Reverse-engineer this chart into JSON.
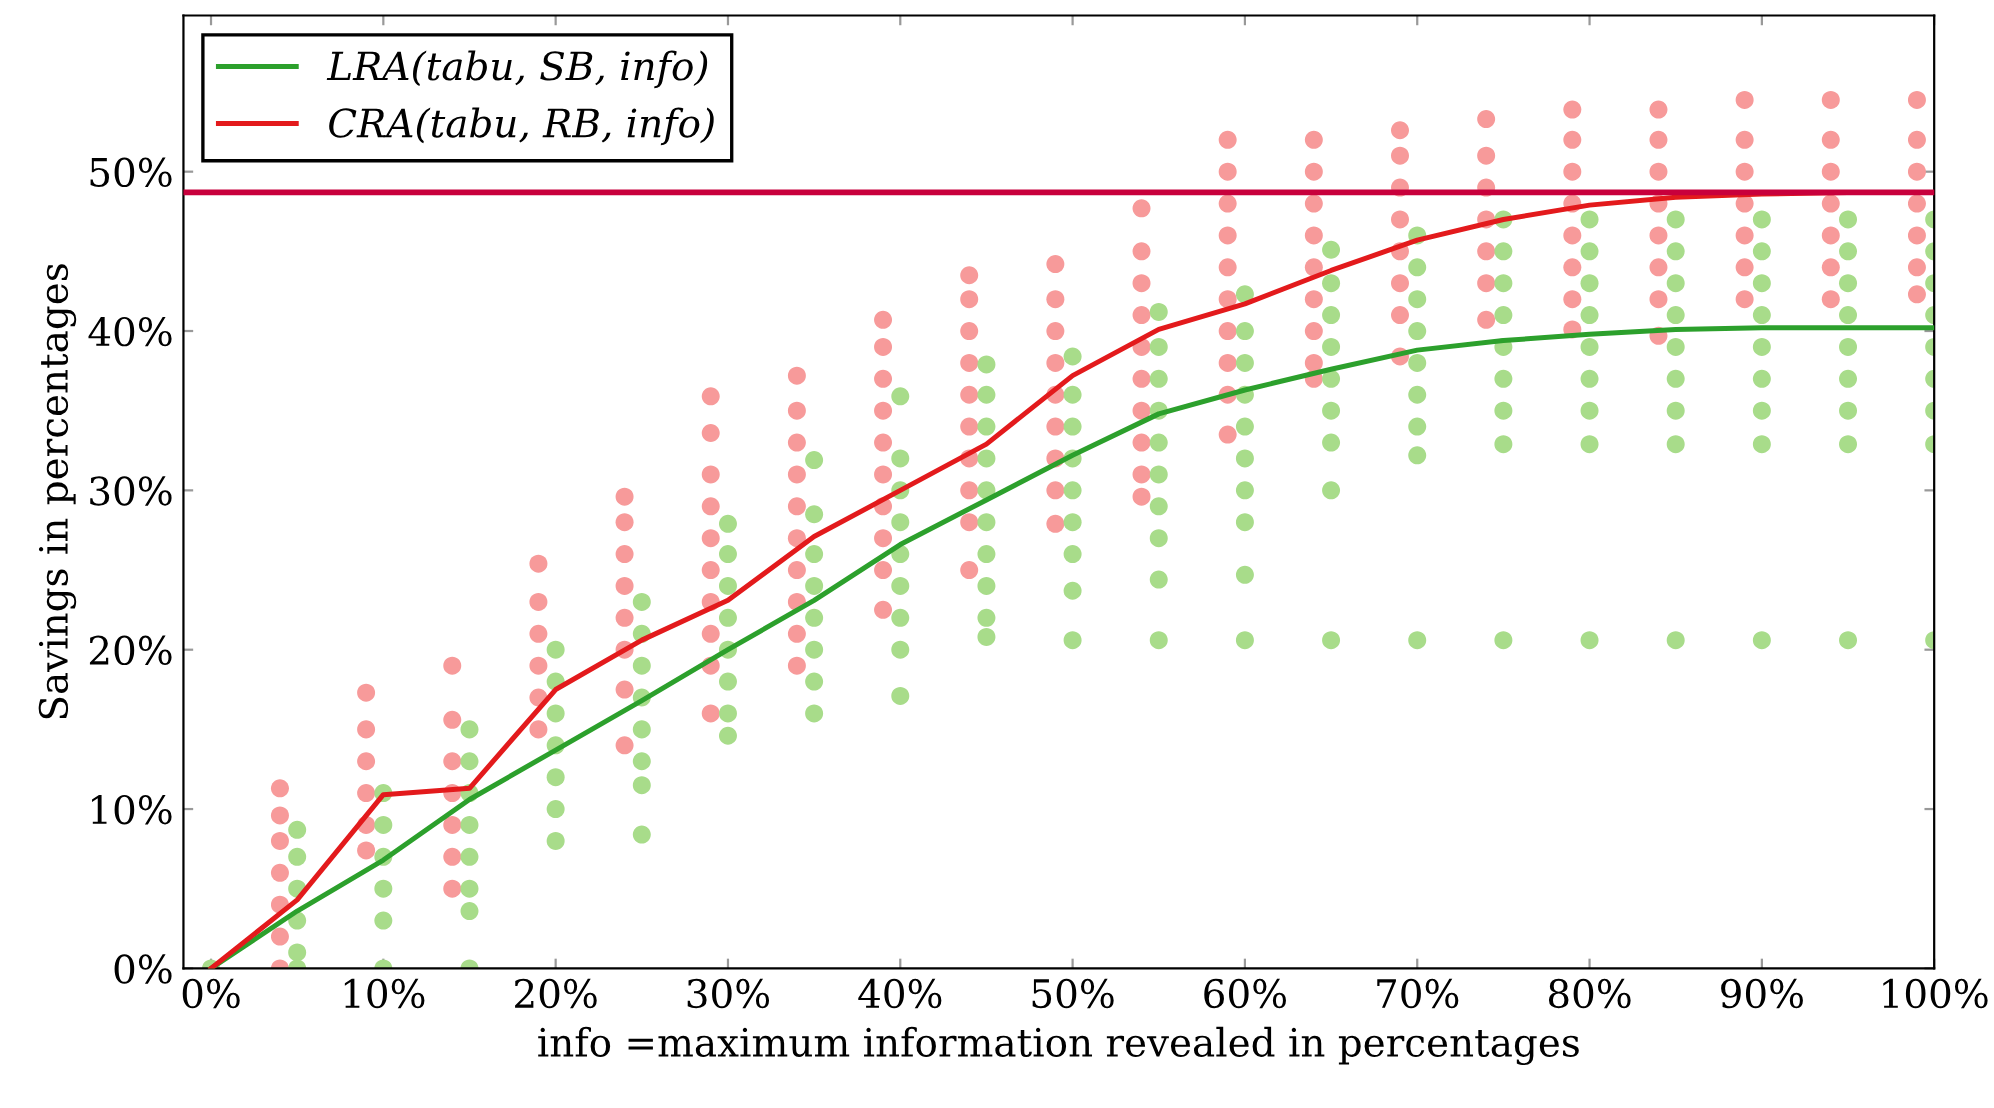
{
  "chart_data": {
    "type": "scatter",
    "xlabel": "info =maximum information revealed in percentages",
    "ylabel": "Savings in percentages",
    "xlim": [
      -1.6,
      100
    ],
    "ylim": [
      0,
      59.8
    ],
    "xticks": [
      {
        "value": 0,
        "label": "0%"
      },
      {
        "value": 10,
        "label": "10%"
      },
      {
        "value": 20,
        "label": "20%"
      },
      {
        "value": 30,
        "label": "30%"
      },
      {
        "value": 40,
        "label": "40%"
      },
      {
        "value": 50,
        "label": "50%"
      },
      {
        "value": 60,
        "label": "60%"
      },
      {
        "value": 70,
        "label": "70%"
      },
      {
        "value": 80,
        "label": "80%"
      },
      {
        "value": 90,
        "label": "90%"
      },
      {
        "value": 100,
        "label": "100%"
      }
    ],
    "yticks": [
      {
        "value": 0,
        "label": "0%"
      },
      {
        "value": 10,
        "label": "10%"
      },
      {
        "value": 20,
        "label": "20%"
      },
      {
        "value": 30,
        "label": "30%"
      },
      {
        "value": 40,
        "label": "40%"
      },
      {
        "value": 50,
        "label": "50%"
      }
    ],
    "legend": "top left",
    "ref_lines": [
      {
        "axis": "y",
        "value": 48.7,
        "color": "#c8003c"
      }
    ],
    "series": [
      {
        "color": "#f79a9a",
        "marker": "circle",
        "x": [
          4,
          4,
          4,
          4,
          4,
          4,
          4,
          9,
          9,
          9,
          9,
          9,
          9,
          14,
          14,
          14,
          14,
          14,
          14,
          14,
          19,
          19,
          19,
          19,
          19,
          19,
          24,
          24,
          24,
          24,
          24,
          24,
          24,
          24,
          29,
          29,
          29,
          29,
          29,
          29,
          29,
          29,
          29,
          29,
          34,
          34,
          34,
          34,
          34,
          34,
          34,
          34,
          34,
          34,
          39,
          39,
          39,
          39,
          39,
          39,
          39,
          39,
          39,
          39,
          44,
          44,
          44,
          44,
          44,
          44,
          44,
          44,
          44,
          44,
          49,
          49,
          49,
          49,
          49,
          49,
          49,
          49,
          49,
          54,
          54,
          54,
          54,
          54,
          54,
          54,
          54,
          54,
          54,
          59,
          59,
          59,
          59,
          59,
          59,
          59,
          59,
          59,
          59,
          64,
          64,
          64,
          64,
          64,
          64,
          64,
          64,
          64,
          69,
          69,
          69,
          69,
          69,
          69,
          69,
          69,
          74,
          74,
          74,
          74,
          74,
          74,
          74,
          79,
          79,
          79,
          79,
          79,
          79,
          79,
          79,
          84,
          84,
          84,
          84,
          84,
          84,
          84,
          84,
          89,
          89,
          89,
          89,
          89,
          89,
          89,
          94,
          94,
          94,
          94,
          94,
          94,
          94,
          99,
          99,
          99,
          99,
          99,
          99,
          99
        ],
        "values": [
          11.3,
          9.6,
          8,
          6,
          4,
          2,
          0,
          17.3,
          15,
          13,
          11,
          9,
          7.4,
          19,
          15.6,
          13,
          11,
          9,
          7,
          5,
          25.4,
          23,
          21,
          19,
          17,
          15,
          29.6,
          28,
          26,
          24,
          22,
          20,
          17.5,
          14,
          35.9,
          33.6,
          31,
          29,
          27,
          25,
          23,
          21,
          19,
          16,
          37.2,
          35,
          33,
          31,
          29,
          27,
          25,
          23,
          21,
          19,
          40.7,
          39,
          37,
          35,
          33,
          31,
          29,
          27,
          25,
          22.5,
          43.5,
          42,
          40,
          38,
          36,
          34,
          32,
          30,
          28,
          25,
          44.2,
          42,
          40,
          38,
          36,
          34,
          32,
          30,
          27.9,
          47.7,
          45,
          43,
          41,
          39,
          37,
          35,
          33,
          31,
          29.6,
          52,
          50,
          48,
          46,
          44,
          42,
          40,
          38,
          36,
          33.5,
          52,
          50,
          48,
          46,
          44,
          42,
          40,
          38,
          37,
          52.6,
          51,
          49,
          47,
          45,
          43,
          41,
          38.4,
          53.3,
          51,
          49,
          47,
          45,
          43,
          40.7,
          53.9,
          52,
          50,
          48,
          46,
          44,
          42,
          40.1,
          53.9,
          52,
          50,
          48,
          46,
          44,
          42,
          39.7,
          54.5,
          52,
          50,
          48,
          46,
          44,
          42,
          54.5,
          52,
          50,
          48,
          46,
          44,
          42,
          54.5,
          52,
          50,
          48,
          46,
          44,
          42.3
        ]
      },
      {
        "color": "#a8dc8a",
        "marker": "circle",
        "x": [
          0,
          5,
          5,
          5,
          5,
          5,
          5,
          10,
          10,
          10,
          10,
          10,
          10,
          15,
          15,
          15,
          15,
          15,
          15,
          15,
          15,
          20,
          20,
          20,
          20,
          20,
          20,
          20,
          25,
          25,
          25,
          25,
          25,
          25,
          25,
          25,
          30,
          30,
          30,
          30,
          30,
          30,
          30,
          30,
          35,
          35,
          35,
          35,
          35,
          35,
          35,
          35,
          40,
          40,
          40,
          40,
          40,
          40,
          40,
          40,
          40,
          45,
          45,
          45,
          45,
          45,
          45,
          45,
          45,
          45,
          45,
          50,
          50,
          50,
          50,
          50,
          50,
          50,
          50,
          50,
          55,
          55,
          55,
          55,
          55,
          55,
          55,
          55,
          55,
          55,
          60,
          60,
          60,
          60,
          60,
          60,
          60,
          60,
          60,
          60,
          65,
          65,
          65,
          65,
          65,
          65,
          65,
          65,
          65,
          70,
          70,
          70,
          70,
          70,
          70,
          70,
          70,
          70,
          75,
          75,
          75,
          75,
          75,
          75,
          75,
          75,
          75,
          80,
          80,
          80,
          80,
          80,
          80,
          80,
          80,
          80,
          85,
          85,
          85,
          85,
          85,
          85,
          85,
          85,
          85,
          90,
          90,
          90,
          90,
          90,
          90,
          90,
          90,
          90,
          95,
          95,
          95,
          95,
          95,
          95,
          95,
          95,
          95,
          100,
          100,
          100,
          100,
          100,
          100,
          100,
          100,
          100
        ],
        "values": [
          0,
          8.7,
          7,
          5,
          3,
          1,
          0,
          11,
          9,
          7,
          5,
          3,
          0,
          15,
          13,
          11,
          9,
          7,
          5,
          3.6,
          0,
          20,
          18,
          16,
          14,
          12,
          10,
          8,
          23,
          21,
          19,
          17,
          15,
          13,
          11.5,
          8.4,
          27.9,
          26,
          24,
          22,
          20,
          18,
          16,
          14.6,
          31.9,
          28.5,
          26,
          24,
          22,
          20,
          18,
          16,
          35.9,
          32,
          30,
          28,
          26,
          24,
          22,
          20,
          17.1,
          37.9,
          36,
          34,
          32,
          30,
          28,
          26,
          24,
          22,
          20.8,
          38.4,
          36,
          34,
          32,
          30,
          28,
          26,
          23.7,
          20.6,
          41.2,
          39,
          37,
          35,
          33,
          31,
          29,
          27,
          24.4,
          20.6,
          42.3,
          40,
          38,
          36,
          34,
          32,
          30,
          28,
          24.7,
          20.6,
          45.1,
          43,
          41,
          39,
          37,
          35,
          33,
          30,
          20.6,
          46,
          44,
          42,
          40,
          38,
          36,
          34,
          32.2,
          20.6,
          47,
          45,
          43,
          41,
          39,
          37,
          35,
          32.9,
          20.6,
          47,
          45,
          43,
          41,
          39,
          37,
          35,
          32.9,
          20.6,
          47,
          45,
          43,
          41,
          39,
          37,
          35,
          32.9,
          20.6,
          47,
          45,
          43,
          41,
          39,
          37,
          35,
          32.9,
          20.6,
          47,
          45,
          43,
          41,
          39,
          37,
          35,
          32.9,
          20.6,
          47,
          45,
          43,
          41,
          39,
          37,
          35,
          32.9,
          20.6
        ]
      },
      {
        "type": "line",
        "name": "LRA(tabu, SB, info)",
        "color": "#2ca02c",
        "x": [
          0,
          5,
          10,
          15,
          20,
          25,
          30,
          35,
          40,
          45,
          50,
          55,
          60,
          65,
          70,
          75,
          80,
          85,
          90,
          95,
          100
        ],
        "values": [
          0,
          3.6,
          6.8,
          10.6,
          13.7,
          16.8,
          20,
          23.1,
          26.6,
          29.4,
          32.2,
          34.8,
          36.3,
          37.6,
          38.8,
          39.4,
          39.8,
          40.1,
          40.2,
          40.2,
          40.2
        ]
      },
      {
        "type": "line",
        "name": "CRA(tabu, RB, info)",
        "color": "#e31a1c",
        "x": [
          0,
          5,
          10,
          15,
          20,
          25,
          30,
          35,
          40,
          45,
          50,
          55,
          60,
          65,
          70,
          75,
          80,
          85,
          90,
          95,
          100
        ],
        "values": [
          0,
          4.3,
          10.9,
          11.3,
          17.5,
          20.6,
          23.1,
          27.1,
          30,
          32.9,
          37.2,
          40.1,
          41.7,
          43.8,
          45.7,
          47,
          47.9,
          48.4,
          48.6,
          48.7,
          48.7
        ]
      }
    ]
  }
}
